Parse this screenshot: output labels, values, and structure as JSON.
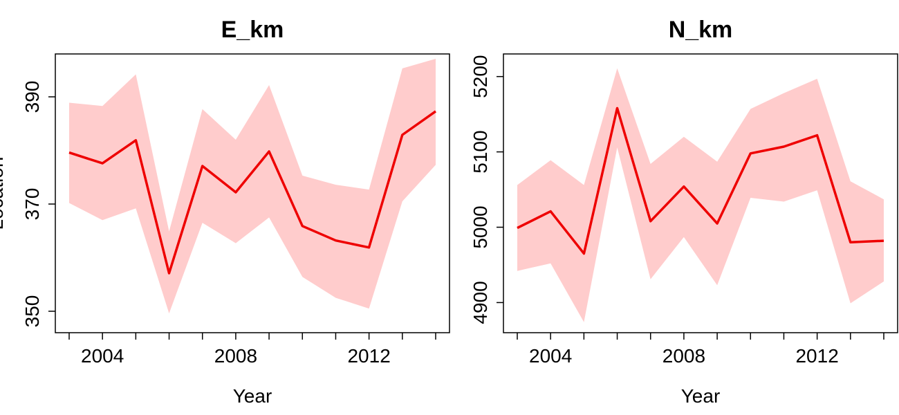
{
  "colors": {
    "line": "#ee0000",
    "band": "#ffcccc"
  },
  "chart_data": [
    {
      "type": "line",
      "title": "E_km",
      "xlabel": "Year",
      "ylabel": "Location",
      "xlim": [
        2003,
        2014
      ],
      "ylim": [
        346,
        398
      ],
      "xticks": [
        2004,
        2008,
        2012
      ],
      "yticks": [
        350,
        370,
        390
      ],
      "x": [
        2003,
        2004,
        2005,
        2006,
        2007,
        2008,
        2009,
        2010,
        2011,
        2012,
        2013,
        2014
      ],
      "series": [
        {
          "values": [
            379.6,
            377.6,
            381.9,
            357.1,
            377.1,
            372.2,
            379.8,
            365.9,
            363.2,
            361.9,
            382.9,
            387.3
          ],
          "lower": [
            370.2,
            367.0,
            369.2,
            349.6,
            366.5,
            362.7,
            367.5,
            356.4,
            352.5,
            350.5,
            370.5,
            377.3
          ],
          "upper": [
            388.9,
            388.3,
            394.2,
            364.9,
            387.7,
            382.0,
            392.2,
            375.3,
            373.6,
            372.7,
            395.3,
            397.1
          ]
        }
      ]
    },
    {
      "type": "line",
      "title": "N_km",
      "xlabel": "Year",
      "ylabel": "",
      "xlim": [
        2003,
        2014
      ],
      "ylim": [
        4860,
        5230
      ],
      "xticks": [
        2004,
        2008,
        2012
      ],
      "yticks": [
        4900,
        5000,
        5100,
        5200
      ],
      "x": [
        2003,
        2004,
        2005,
        2006,
        2007,
        2008,
        2009,
        2010,
        2011,
        2012,
        2013,
        2014
      ],
      "series": [
        {
          "values": [
            4999,
            5021,
            4965,
            5158,
            5008,
            5054,
            5005,
            5098,
            5107,
            5122,
            4980,
            4982
          ],
          "lower": [
            4942,
            4952,
            4874,
            5106,
            4931,
            4987,
            4923,
            5039,
            5034,
            5049,
            4899,
            4928
          ],
          "upper": [
            5056,
            5089,
            5056,
            5211,
            5084,
            5120,
            5087,
            5157,
            5178,
            5197,
            5061,
            5037
          ]
        }
      ]
    }
  ]
}
